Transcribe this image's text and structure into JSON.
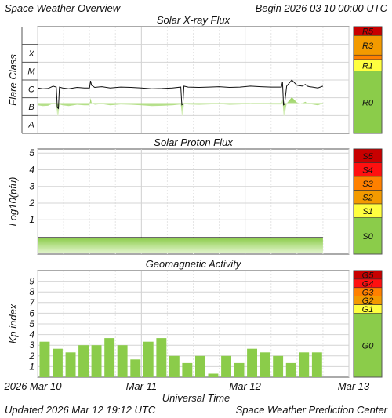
{
  "header": {
    "title": "Space Weather Overview",
    "begin": "Begin 2026 03 10 00:00 UTC"
  },
  "footer": {
    "updated": "Updated 2026 Mar 12 19:12 UTC",
    "center": "Space Weather Prediction Center"
  },
  "x_axis": {
    "label": "Universal Time",
    "tick_labels": [
      "2026 Mar 10",
      "Mar 11",
      "Mar 12",
      "Mar 13"
    ]
  },
  "scale_colors": {
    "green": "#8bcc4a",
    "yellow": "#ffff40",
    "orange": "#f39a00",
    "dark_orange": "#ff8000",
    "red": "#ff1010",
    "dark_red": "#c80000"
  },
  "chart_data": [
    {
      "type": "line",
      "title": "Solar X-ray Flux",
      "ylabel": "Flare Class",
      "y_classes": [
        "X",
        "M",
        "C",
        "B",
        "A"
      ],
      "y_scale": "log10 W/m^2",
      "ylim": [
        -9,
        -3
      ],
      "xlim_days": [
        0,
        3
      ],
      "grid": true,
      "x_days": [
        0.0,
        0.05,
        0.1,
        0.15,
        0.18,
        0.19,
        0.2,
        0.21,
        0.24,
        0.3,
        0.38,
        0.45,
        0.5,
        0.51,
        0.52,
        0.55,
        0.62,
        0.7,
        0.8,
        0.9,
        1.0,
        1.1,
        1.2,
        1.3,
        1.38,
        1.39,
        1.4,
        1.41,
        1.45,
        1.55,
        1.65,
        1.75,
        1.85,
        1.95,
        2.05,
        2.15,
        2.25,
        2.35,
        2.36,
        2.37,
        2.38,
        2.4,
        2.45,
        2.5,
        2.55,
        2.58,
        2.6,
        2.62,
        2.65,
        2.7,
        2.75
      ],
      "y_log_flux": [
        -6.45,
        -6.5,
        -6.48,
        -6.35,
        -6.4,
        -7.55,
        -7.6,
        -6.4,
        -6.45,
        -6.5,
        -6.42,
        -6.45,
        -6.45,
        -6.05,
        -6.3,
        -6.42,
        -6.38,
        -6.45,
        -6.4,
        -6.42,
        -6.45,
        -6.5,
        -6.48,
        -6.45,
        -6.4,
        -7.4,
        -7.35,
        -6.35,
        -6.4,
        -6.42,
        -6.4,
        -6.38,
        -6.42,
        -6.4,
        -6.35,
        -6.38,
        -6.4,
        -6.4,
        -6.1,
        -7.4,
        -7.35,
        -6.35,
        -6.0,
        -6.3,
        -6.35,
        -6.25,
        -6.35,
        -6.38,
        -6.4,
        -6.45,
        -6.35
      ],
      "scales": [
        "R5",
        "R3",
        "R1",
        "R0"
      ]
    },
    {
      "type": "line",
      "title": "Solar Proton Flux",
      "ylabel": "Log10(pfu)",
      "ylim": [
        -1,
        6
      ],
      "yticks": [
        "1",
        "2",
        "3",
        "4",
        "5"
      ],
      "xlim_days": [
        0,
        3
      ],
      "grid": true,
      "x_days": [
        0.0,
        0.25,
        0.5,
        0.75,
        1.0,
        1.25,
        1.5,
        1.75,
        2.0,
        2.25,
        2.5,
        2.75
      ],
      "y_log_flux": [
        -0.4,
        -0.42,
        -0.4,
        -0.38,
        -0.4,
        -0.41,
        -0.4,
        -0.39,
        -0.4,
        -0.41,
        -0.4,
        -0.4
      ],
      "scales": [
        "S5",
        "S4",
        "S3",
        "S2",
        "S1",
        "S0"
      ]
    },
    {
      "type": "bar",
      "title": "Geomagnetic Activity",
      "ylabel": "Kp index",
      "ylim": [
        0,
        10
      ],
      "yticks": [
        "1",
        "2",
        "3",
        "4",
        "5",
        "6",
        "7",
        "8",
        "9"
      ],
      "xlim_days": [
        0,
        3
      ],
      "grid": true,
      "values": [
        3.33,
        2.67,
        2.33,
        3.0,
        3.0,
        3.67,
        3.0,
        1.67,
        3.33,
        3.67,
        2.0,
        1.33,
        2.0,
        0.33,
        2.0,
        1.33,
        2.67,
        2.33,
        2.0,
        1.33,
        2.33,
        2.33
      ],
      "scales": [
        "G5",
        "G4",
        "G3",
        "G2",
        "G1",
        "G0"
      ]
    }
  ]
}
